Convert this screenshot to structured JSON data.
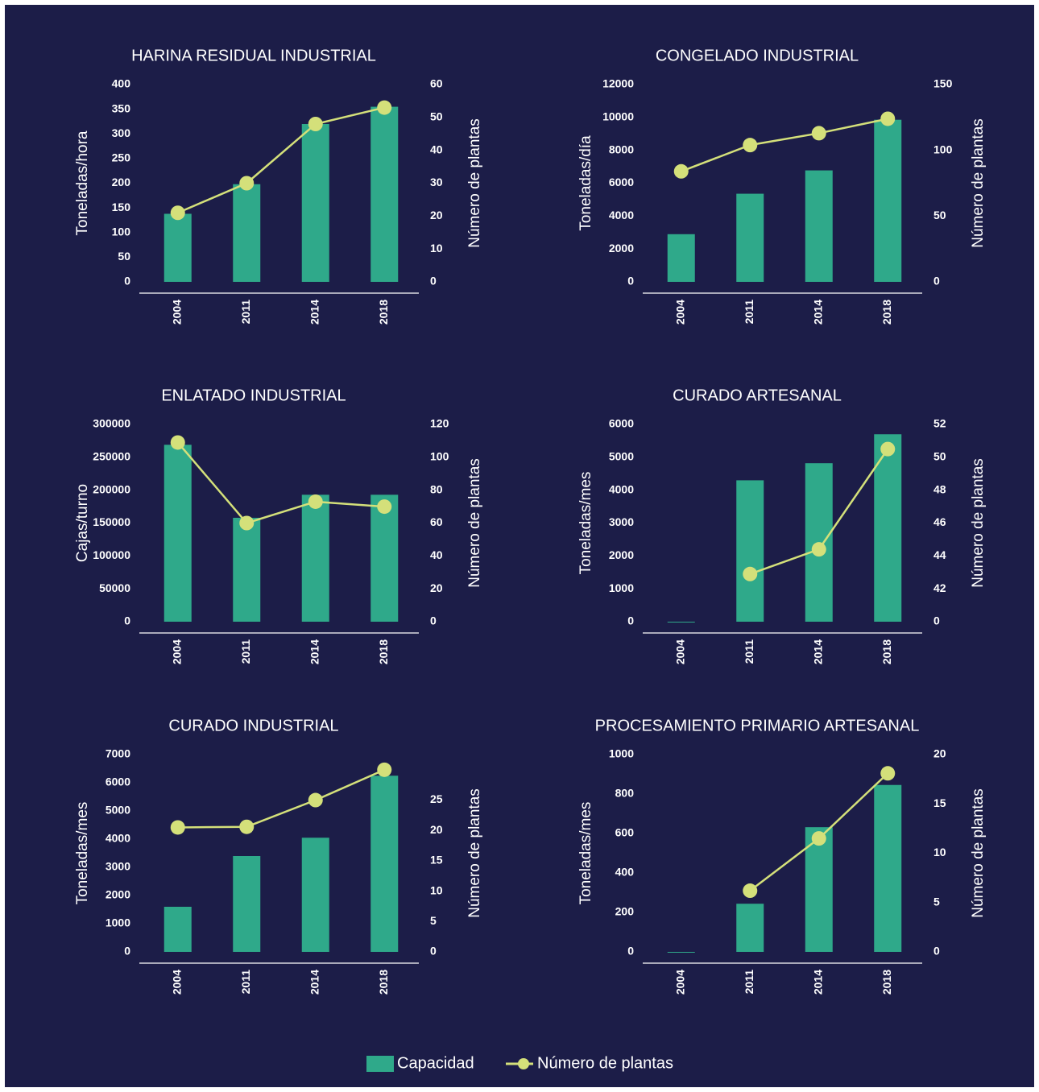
{
  "chart_data": [
    {
      "type": "bar",
      "title": "HARINA RESIDUAL INDUSTRIAL",
      "ylabel": "Toneladas/hora",
      "y2label": "Número de plantas",
      "categories": [
        "2004",
        "2011",
        "2014",
        "2018"
      ],
      "series": [
        {
          "values": [
            138,
            198,
            320,
            355
          ]
        },
        {
          "values": [
            21,
            30,
            48,
            53
          ],
          "axis": "y2"
        }
      ],
      "ylim": [
        0,
        400
      ],
      "yticks": [
        0,
        50,
        100,
        150,
        200,
        250,
        300,
        350,
        400
      ],
      "y2lim": [
        0,
        60
      ],
      "y2ticks": [
        0,
        10,
        20,
        30,
        40,
        50,
        60
      ]
    },
    {
      "type": "bar",
      "title": "CONGELADO INDUSTRIAL",
      "ylabel": "Toneladas/día",
      "y2label": "Número de plantas",
      "categories": [
        "2004",
        "2011",
        "2014",
        "2018"
      ],
      "series": [
        {
          "values": [
            2900,
            5360,
            6780,
            9860
          ]
        },
        {
          "values": [
            84,
            104,
            113,
            124
          ],
          "axis": "y2"
        }
      ],
      "ylim": [
        0,
        12000
      ],
      "yticks": [
        0,
        2000,
        4000,
        6000,
        8000,
        10000,
        12000
      ],
      "y2lim": [
        0,
        150
      ],
      "y2ticks": [
        0,
        50,
        100,
        150
      ]
    },
    {
      "type": "bar",
      "title": "ENLATADO INDUSTRIAL",
      "ylabel": "Cajas/turno",
      "y2label": "Número de plantas",
      "categories": [
        "2004",
        "2011",
        "2014",
        "2018"
      ],
      "series": [
        {
          "values": [
            269000,
            158000,
            193000,
            193000
          ]
        },
        {
          "values": [
            109,
            60,
            73,
            70
          ],
          "axis": "y2"
        }
      ],
      "ylim": [
        0,
        300000
      ],
      "yticks": [
        0,
        50000,
        100000,
        150000,
        200000,
        250000,
        300000
      ],
      "y2lim": [
        0,
        120
      ],
      "y2ticks": [
        0,
        20,
        40,
        60,
        80,
        100,
        120
      ]
    },
    {
      "type": "bar",
      "title": "CURADO ARTESANAL",
      "ylabel": "Toneladas/mes",
      "y2label": "Número de plantas",
      "categories": [
        "2004",
        "2011",
        "2014",
        "2018"
      ],
      "series": [
        {
          "values": [
            0,
            4300,
            4820,
            5700
          ]
        },
        {
          "values": [
            null,
            42.9,
            44.4,
            50.5
          ],
          "axis": "y2"
        }
      ],
      "ylim": [
        0,
        6000
      ],
      "yticks": [
        0,
        1000,
        2000,
        3000,
        4000,
        5000,
        6000
      ],
      "y2lim": [
        40,
        52
      ],
      "y2ticks": [
        {
          "value": 40,
          "label": "0"
        },
        42,
        44,
        46,
        48,
        50,
        52
      ]
    },
    {
      "type": "bar",
      "title": "CURADO INDUSTRIAL",
      "ylabel": "Toneladas/mes",
      "y2label": "Número de plantas",
      "categories": [
        "2004",
        "2011",
        "2014",
        "2018"
      ],
      "series": [
        {
          "values": [
            1600,
            3400,
            4050,
            6250
          ]
        },
        {
          "values": [
            20.5,
            20.6,
            25,
            30
          ],
          "axis": "y2"
        }
      ],
      "ylim": [
        0,
        7000
      ],
      "yticks": [
        0,
        1000,
        2000,
        3000,
        4000,
        5000,
        6000,
        7000
      ],
      "y2lim": [
        0,
        32.5
      ],
      "y2ticks": [
        0,
        5,
        10,
        15,
        20,
        25
      ]
    },
    {
      "type": "bar",
      "title": "PROCESAMIENTO PRIMARIO ARTESANAL",
      "ylabel": "Toneladas/mes",
      "y2label": "Número de plantas",
      "categories": [
        "2004",
        "2011",
        "2014",
        "2018"
      ],
      "series": [
        {
          "values": [
            0,
            244,
            632,
            846
          ]
        },
        {
          "values": [
            null,
            6.2,
            11.5,
            18.1
          ],
          "axis": "y2"
        }
      ],
      "ylim": [
        0,
        1000
      ],
      "yticks": [
        0,
        200,
        400,
        600,
        800,
        1000
      ],
      "y2lim": [
        0,
        20
      ],
      "y2ticks": [
        0,
        5,
        10,
        15,
        20
      ]
    }
  ],
  "legend": [
    {
      "name": "Capacidad",
      "color": "#2fa98a"
    },
    {
      "name": "Número de plantas",
      "color": "#d4e07a"
    }
  ]
}
